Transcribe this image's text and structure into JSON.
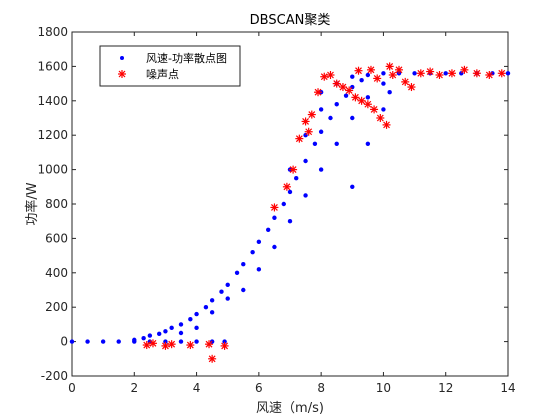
{
  "chart_data": {
    "type": "scatter",
    "title": "DBSCAN聚类",
    "xlabel": "风速（m/s)",
    "ylabel": "功率/W",
    "xlim": [
      0,
      14
    ],
    "ylim": [
      -200,
      1800
    ],
    "xticks": [
      "0",
      "2",
      "4",
      "6",
      "8",
      "10",
      "12",
      "14"
    ],
    "yticks": [
      "-200",
      "0",
      "200",
      "400",
      "600",
      "800",
      "1000",
      "1200",
      "1400",
      "1600",
      "1800"
    ],
    "grid": false,
    "legend_position": "top-left",
    "series": [
      {
        "name": "风速-功率散点图",
        "marker": "dot",
        "color": "#0000ff",
        "points": [
          [
            0.0,
            0
          ],
          [
            0.5,
            0
          ],
          [
            1.0,
            0
          ],
          [
            1.5,
            0
          ],
          [
            2.0,
            0
          ],
          [
            2.5,
            0
          ],
          [
            3.0,
            0
          ],
          [
            3.5,
            0
          ],
          [
            4.0,
            0
          ],
          [
            4.5,
            0
          ],
          [
            4.9,
            0
          ],
          [
            2.0,
            10
          ],
          [
            2.3,
            20
          ],
          [
            2.5,
            35
          ],
          [
            2.8,
            45
          ],
          [
            3.0,
            60
          ],
          [
            3.2,
            80
          ],
          [
            3.5,
            100
          ],
          [
            3.8,
            130
          ],
          [
            4.0,
            160
          ],
          [
            4.3,
            200
          ],
          [
            4.5,
            240
          ],
          [
            4.8,
            290
          ],
          [
            5.0,
            330
          ],
          [
            5.3,
            400
          ],
          [
            5.5,
            450
          ],
          [
            5.8,
            520
          ],
          [
            6.0,
            580
          ],
          [
            6.3,
            650
          ],
          [
            6.5,
            720
          ],
          [
            6.8,
            800
          ],
          [
            7.0,
            870
          ],
          [
            7.2,
            950
          ],
          [
            7.5,
            1050
          ],
          [
            7.8,
            1150
          ],
          [
            8.0,
            1220
          ],
          [
            8.3,
            1300
          ],
          [
            8.5,
            1380
          ],
          [
            8.8,
            1430
          ],
          [
            9.0,
            1480
          ],
          [
            9.3,
            1520
          ],
          [
            9.5,
            1550
          ],
          [
            10.0,
            1560
          ],
          [
            10.5,
            1560
          ],
          [
            11.0,
            1560
          ],
          [
            11.5,
            1560
          ],
          [
            12.0,
            1560
          ],
          [
            12.5,
            1560
          ],
          [
            13.0,
            1560
          ],
          [
            13.5,
            1560
          ],
          [
            14.0,
            1560
          ],
          [
            6.5,
            550
          ],
          [
            7.0,
            700
          ],
          [
            7.5,
            850
          ],
          [
            8.0,
            1000
          ],
          [
            8.5,
            1150
          ],
          [
            9.0,
            1300
          ],
          [
            9.5,
            1420
          ],
          [
            10.0,
            1500
          ],
          [
            7.5,
            1200
          ],
          [
            8.0,
            1350
          ],
          [
            8.5,
            1500
          ],
          [
            9.0,
            1540
          ],
          [
            5.5,
            300
          ],
          [
            5.0,
            250
          ],
          [
            4.5,
            170
          ],
          [
            6.0,
            420
          ],
          [
            7.0,
            1000
          ],
          [
            8.0,
            1450
          ],
          [
            9.0,
            900
          ],
          [
            9.5,
            1150
          ],
          [
            10.0,
            1350
          ],
          [
            10.2,
            1450
          ],
          [
            3.5,
            50
          ],
          [
            4.0,
            80
          ]
        ]
      },
      {
        "name": "噪声点",
        "marker": "asterisk",
        "color": "#ff0000",
        "points": [
          [
            2.4,
            -20
          ],
          [
            2.6,
            -10
          ],
          [
            3.0,
            -25
          ],
          [
            3.2,
            -15
          ],
          [
            3.8,
            -20
          ],
          [
            4.4,
            -15
          ],
          [
            4.5,
            -100
          ],
          [
            4.9,
            -25
          ],
          [
            7.1,
            1000
          ],
          [
            7.3,
            1180
          ],
          [
            7.5,
            1280
          ],
          [
            7.7,
            1320
          ],
          [
            7.9,
            1450
          ],
          [
            8.1,
            1540
          ],
          [
            8.3,
            1550
          ],
          [
            8.5,
            1500
          ],
          [
            8.7,
            1480
          ],
          [
            8.9,
            1460
          ],
          [
            9.1,
            1420
          ],
          [
            9.3,
            1400
          ],
          [
            9.5,
            1380
          ],
          [
            9.7,
            1350
          ],
          [
            9.9,
            1300
          ],
          [
            10.1,
            1260
          ],
          [
            10.3,
            1550
          ],
          [
            10.5,
            1580
          ],
          [
            10.7,
            1510
          ],
          [
            10.9,
            1480
          ],
          [
            11.2,
            1560
          ],
          [
            11.5,
            1570
          ],
          [
            11.8,
            1550
          ],
          [
            12.2,
            1560
          ],
          [
            12.6,
            1580
          ],
          [
            13.0,
            1560
          ],
          [
            13.4,
            1550
          ],
          [
            13.8,
            1560
          ],
          [
            9.2,
            1575
          ],
          [
            9.6,
            1580
          ],
          [
            9.8,
            1530
          ],
          [
            10.2,
            1600
          ],
          [
            7.6,
            1220
          ],
          [
            6.9,
            900
          ],
          [
            6.5,
            780
          ]
        ]
      }
    ]
  }
}
